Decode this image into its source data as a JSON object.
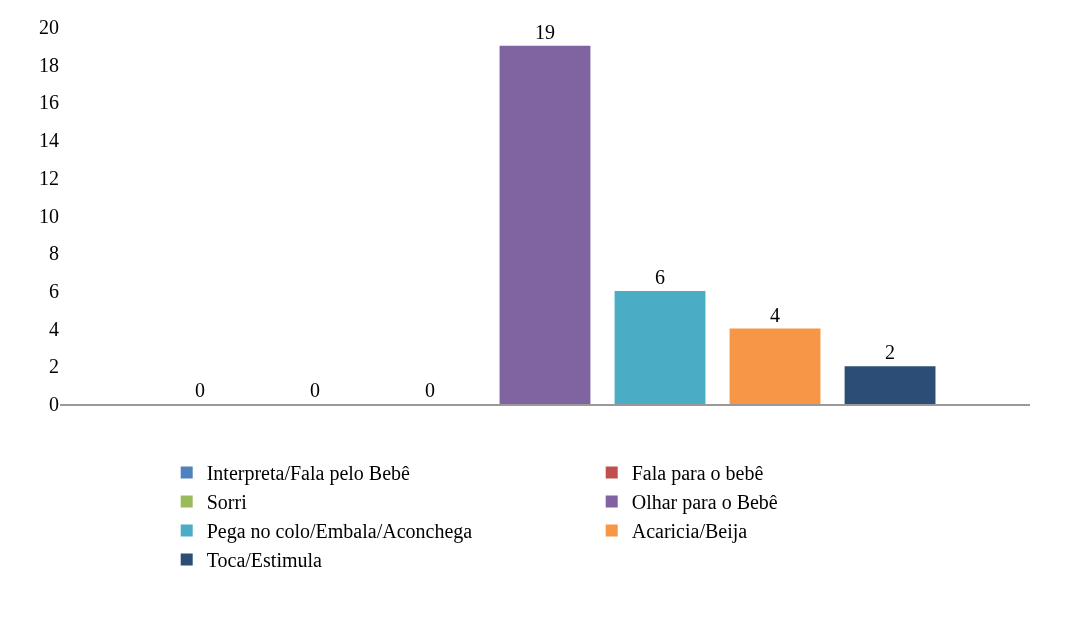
{
  "chart_data": {
    "type": "bar",
    "categories": [
      null
    ],
    "series": [
      {
        "name": "Interpreta/Fala pelo Bebê",
        "color": "#4f81bd",
        "values": [
          0
        ]
      },
      {
        "name": "Fala para o bebê",
        "color": "#c0504d",
        "values": [
          0
        ]
      },
      {
        "name": "Sorri",
        "color": "#9bbb59",
        "values": [
          0
        ]
      },
      {
        "name": "Olhar para o Bebê",
        "color": "#8064a2",
        "values": [
          19
        ]
      },
      {
        "name": "Pega no colo/Embala/Aconchega",
        "color": "#4bacc6",
        "values": [
          6
        ]
      },
      {
        "name": "Acaricia/Beija",
        "color": "#f79646",
        "values": [
          4
        ]
      },
      {
        "name": "Toca/Estimula",
        "color": "#2c4d75",
        "values": [
          2
        ]
      }
    ],
    "ylim": [
      0,
      20
    ],
    "yticks": [
      0,
      2,
      4,
      6,
      8,
      10,
      12,
      14,
      16,
      18,
      20
    ],
    "data_labels": true,
    "grid": false,
    "legend": "bottom",
    "tick_labels": "y"
  }
}
